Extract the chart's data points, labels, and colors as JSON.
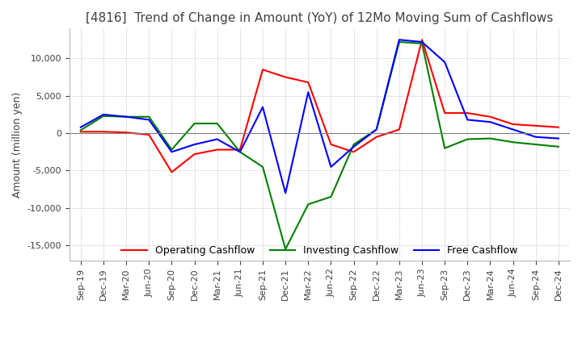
{
  "title": "[4816]  Trend of Change in Amount (YoY) of 12Mo Moving Sum of Cashflows",
  "ylabel": "Amount (million yen)",
  "x_labels": [
    "Sep-19",
    "Dec-19",
    "Mar-20",
    "Jun-20",
    "Sep-20",
    "Dec-20",
    "Mar-21",
    "Jun-21",
    "Sep-21",
    "Dec-21",
    "Mar-22",
    "Jun-22",
    "Sep-22",
    "Dec-22",
    "Mar-23",
    "Jun-23",
    "Sep-23",
    "Dec-23",
    "Mar-24",
    "Jun-24",
    "Sep-24",
    "Dec-24"
  ],
  "operating_cashflow": [
    200,
    200,
    100,
    -200,
    -5200,
    -2800,
    -2200,
    -2200,
    8500,
    7500,
    6800,
    -1500,
    -2500,
    -500,
    500,
    12500,
    2700,
    2700,
    2200,
    1200,
    1000,
    800
  ],
  "investing_cashflow": [
    400,
    2300,
    2200,
    2200,
    -2200,
    1300,
    1300,
    -2500,
    -4500,
    -15500,
    -9500,
    -8500,
    -1500,
    500,
    12200,
    12000,
    -2000,
    -800,
    -700,
    -1200,
    -1500,
    -1800
  ],
  "free_cashflow": [
    800,
    2500,
    2200,
    1800,
    -2500,
    -1500,
    -800,
    -2500,
    3500,
    -8000,
    5500,
    -4500,
    -1800,
    500,
    12500,
    12200,
    9500,
    1800,
    1500,
    500,
    -500,
    -700
  ],
  "ylim": [
    -17000,
    14000
  ],
  "yticks": [
    -15000,
    -10000,
    -5000,
    0,
    5000,
    10000
  ],
  "operating_color": "#ff0000",
  "investing_color": "#008000",
  "free_color": "#0000ff",
  "bg_color": "#ffffff",
  "grid_color": "#b0b0b0",
  "title_color": "#404040",
  "title_fontsize": 11,
  "label_fontsize": 9,
  "tick_fontsize": 8,
  "legend_fontsize": 9
}
